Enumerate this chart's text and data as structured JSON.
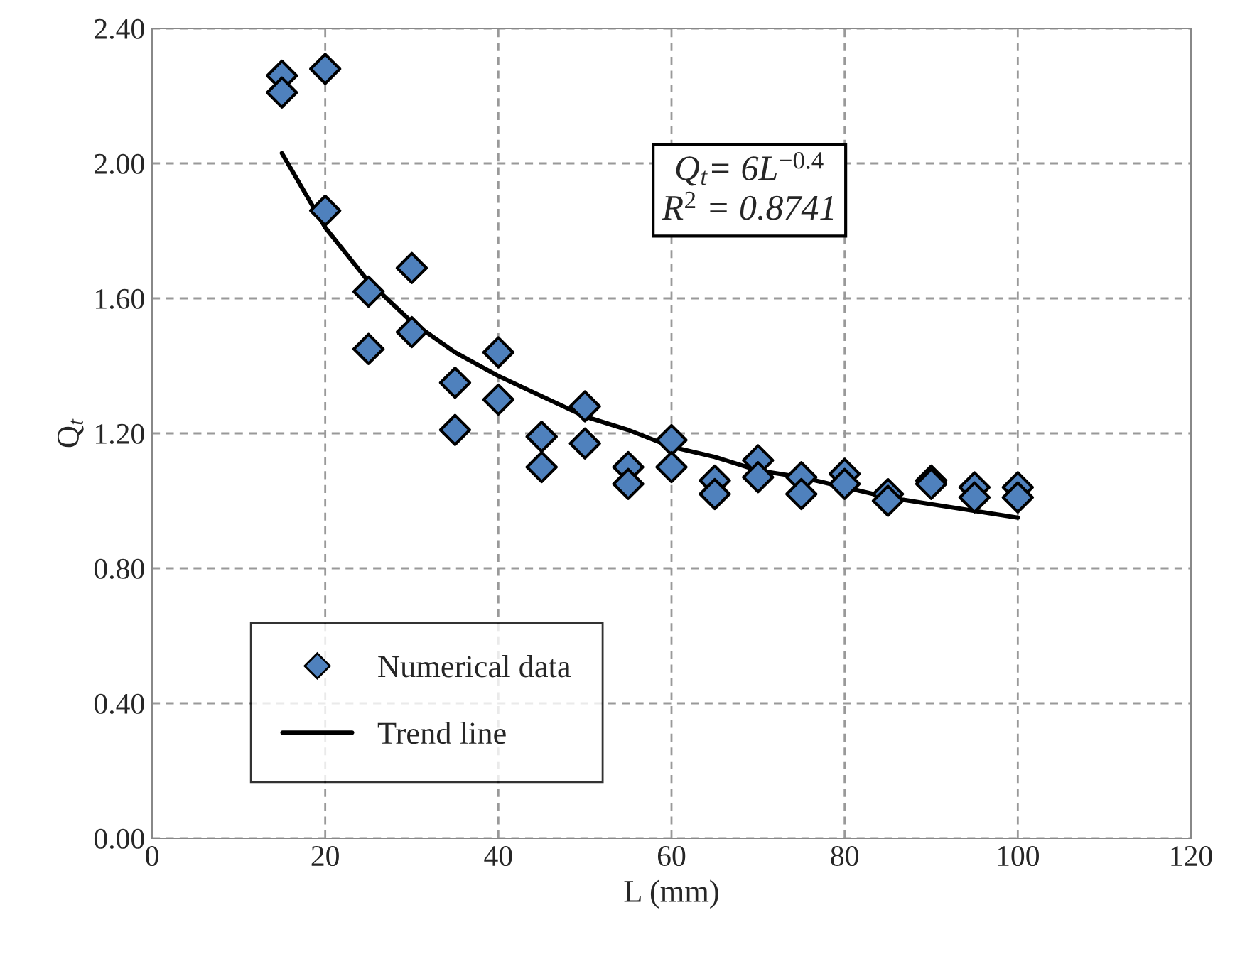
{
  "chart_data": {
    "type": "scatter",
    "xlabel": "L (mm)",
    "ylabel": "Q$_{t}$",
    "annotations": [
      "Q$_{t}$= 6L$^{−0.4}$\nR$^{2}$ = 0.8741"
    ],
    "series": [
      {
        "name": "Numerical data",
        "color": "#4f81bd",
        "marker": "diamond",
        "x": [
          15,
          15,
          20,
          20,
          25,
          25,
          30,
          30,
          35,
          35,
          40,
          40,
          45,
          45,
          50,
          50,
          55,
          55,
          60,
          60,
          65,
          65,
          70,
          70,
          75,
          75,
          80,
          80,
          85,
          85,
          90,
          90,
          95,
          95,
          100,
          100
        ],
        "values": [
          2.26,
          2.21,
          2.28,
          1.86,
          1.62,
          1.45,
          1.69,
          1.5,
          1.35,
          1.21,
          1.44,
          1.3,
          1.19,
          1.1,
          1.28,
          1.17,
          1.1,
          1.05,
          1.18,
          1.1,
          1.06,
          1.02,
          1.12,
          1.07,
          1.07,
          1.02,
          1.08,
          1.05,
          1.02,
          1.0,
          1.06,
          1.05,
          1.04,
          1.01,
          1.04,
          1.01
        ]
      },
      {
        "name": "Trend line",
        "type": "line",
        "color": "#000000",
        "line_style": "solid",
        "x": [
          15,
          20,
          25,
          30,
          35,
          40,
          45,
          50,
          55,
          60,
          65,
          70,
          75,
          80,
          85,
          90,
          95,
          100
        ],
        "values": [
          2.03,
          1.81,
          1.65,
          1.53,
          1.44,
          1.37,
          1.31,
          1.25,
          1.21,
          1.16,
          1.13,
          1.09,
          1.07,
          1.04,
          1.01,
          0.99,
          0.97,
          0.95
        ]
      }
    ],
    "xlim": [
      0,
      120
    ],
    "xticks": [
      0,
      20,
      40,
      60,
      80,
      100,
      120
    ],
    "ylim": [
      0,
      2.4
    ],
    "yticks": [
      {
        "value": 0,
        "label": "0.00"
      },
      {
        "value": 0.4,
        "label": "0.40"
      },
      {
        "value": 0.8,
        "label": "0.80"
      },
      {
        "value": 1.2,
        "label": "1.20"
      },
      {
        "value": 1.6,
        "label": "1.60"
      },
      {
        "value": 2.0,
        "label": "2.00"
      },
      {
        "value": 2.4,
        "label": "2.40"
      }
    ],
    "grid": true,
    "legend": "bottom left"
  }
}
